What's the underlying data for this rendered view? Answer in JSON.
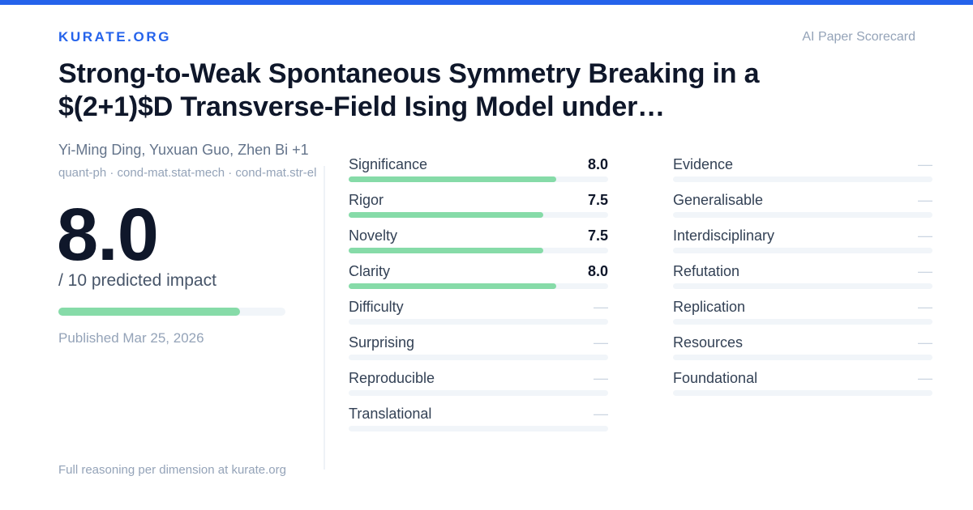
{
  "header": {
    "brand": "KURATE.ORG",
    "tagline": "AI Paper Scorecard",
    "accent_color": "#2563eb"
  },
  "paper": {
    "title": "Strong-to-Weak Spontaneous Symmetry Breaking in a $(2+1)$D Transverse-Field Ising Model under…",
    "authors": "Yi-Ming Ding, Yuxuan Guo, Zhen Bi +1",
    "categories": "quant-ph · cond-mat.stat-mech · cond-mat.str-el",
    "published": "Published Mar 25, 2026"
  },
  "overall": {
    "score": "8.0",
    "caption": "/ 10 predicted impact",
    "fraction": 0.8,
    "bar_color": "#86dba8"
  },
  "dimensions_left": [
    {
      "label": "Significance",
      "value": "8.0",
      "fraction": 0.8
    },
    {
      "label": "Rigor",
      "value": "7.5",
      "fraction": 0.75
    },
    {
      "label": "Novelty",
      "value": "7.5",
      "fraction": 0.75
    },
    {
      "label": "Clarity",
      "value": "8.0",
      "fraction": 0.8
    },
    {
      "label": "Difficulty",
      "value": "—",
      "fraction": 0
    },
    {
      "label": "Surprising",
      "value": "—",
      "fraction": 0
    },
    {
      "label": "Reproducible",
      "value": "—",
      "fraction": 0
    },
    {
      "label": "Translational",
      "value": "—",
      "fraction": 0
    }
  ],
  "dimensions_right": [
    {
      "label": "Evidence",
      "value": "—",
      "fraction": 0
    },
    {
      "label": "Generalisable",
      "value": "—",
      "fraction": 0
    },
    {
      "label": "Interdisciplinary",
      "value": "—",
      "fraction": 0
    },
    {
      "label": "Refutation",
      "value": "—",
      "fraction": 0
    },
    {
      "label": "Replication",
      "value": "—",
      "fraction": 0
    },
    {
      "label": "Resources",
      "value": "—",
      "fraction": 0
    },
    {
      "label": "Foundational",
      "value": "—",
      "fraction": 0
    }
  ],
  "footer": "Full reasoning per dimension at kurate.org"
}
